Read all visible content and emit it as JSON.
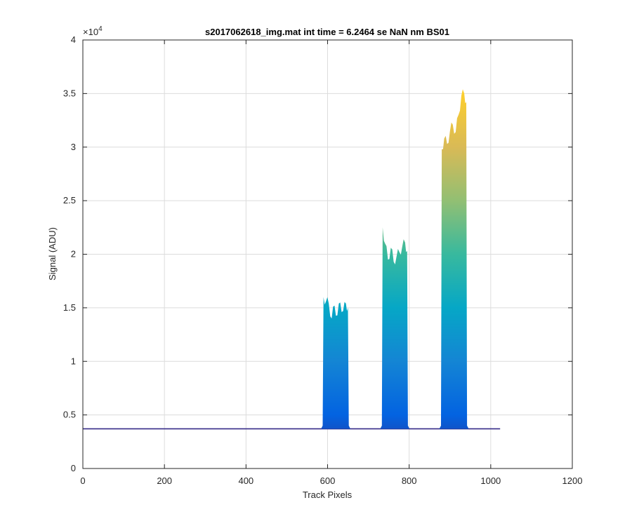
{
  "chart_data": {
    "type": "area",
    "title": "s2017062618_img.mat int time = 6.2464 se  NaN nm BS01",
    "xlabel": "Track Pixels",
    "ylabel": "Signal (ADU)",
    "xlim": [
      0,
      1200
    ],
    "ylim": [
      0,
      40000
    ],
    "y_exponent_label": "×10",
    "y_exponent_power": "4",
    "xticks": [
      0,
      200,
      400,
      600,
      800,
      1000,
      1200
    ],
    "xtick_labels": [
      "0",
      "200",
      "400",
      "600",
      "800",
      "1000",
      "1200"
    ],
    "yticks": [
      0,
      5000,
      10000,
      15000,
      20000,
      25000,
      30000,
      35000,
      40000
    ],
    "ytick_labels": [
      "0",
      "0.5",
      "1",
      "1.5",
      "2",
      "2.5",
      "3",
      "3.5",
      "4"
    ],
    "grid": true,
    "colormap": [
      "#352a87",
      "#0363e1",
      "#1485d4",
      "#06a7c6",
      "#38b99e",
      "#92bf73",
      "#d9ba56",
      "#fcce2e",
      "#f9fb0e"
    ],
    "baseline": 3700,
    "x_extent": [
      0,
      1023
    ],
    "peaks": [
      {
        "x_start": 590,
        "x_end": 650,
        "max": 16000,
        "profile_x": [
          590,
          596,
          603,
          610,
          617,
          624,
          631,
          638,
          645,
          650
        ],
        "profile_y": [
          16000,
          15600,
          15400,
          14000,
          15200,
          14300,
          15500,
          14700,
          15400,
          15000
        ]
      },
      {
        "x_start": 735,
        "x_end": 795,
        "max": 22500,
        "profile_x": [
          735,
          741,
          748,
          755,
          762,
          769,
          776,
          783,
          790,
          795
        ],
        "profile_y": [
          22500,
          21000,
          19500,
          20600,
          19300,
          19800,
          20200,
          20700,
          21100,
          20300
        ]
      },
      {
        "x_start": 880,
        "x_end": 940,
        "max": 35000,
        "profile_x": [
          880,
          886,
          893,
          900,
          907,
          914,
          921,
          928,
          935,
          940
        ],
        "profile_y": [
          29800,
          30800,
          30300,
          31500,
          32100,
          31400,
          33000,
          34800,
          35000,
          34200
        ]
      }
    ]
  }
}
